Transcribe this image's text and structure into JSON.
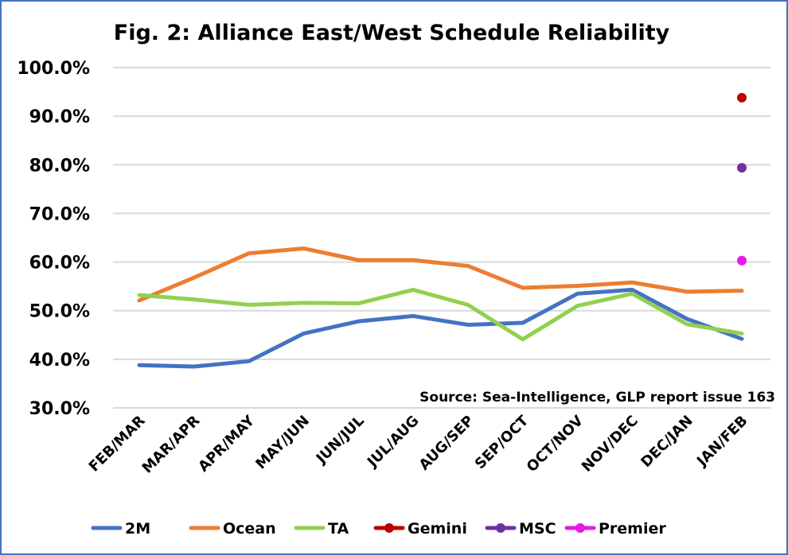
{
  "chart_data": {
    "type": "line",
    "title": "Fig. 2: Alliance East/West Schedule Reliability",
    "annotation": "Source: Sea-Intelligence, GLP report issue 163",
    "xlabel": "",
    "ylabel": "",
    "ylim": [
      30,
      100
    ],
    "yticks": [
      "30.0%",
      "40.0%",
      "50.0%",
      "60.0%",
      "70.0%",
      "80.0%",
      "90.0%",
      "100.0%"
    ],
    "grid": true,
    "legend_position": "bottom",
    "categories": [
      "FEB/MAR",
      "MAR/APR",
      "APR/MAY",
      "MAY/JUN",
      "JUN/JUL",
      "JUL/AUG",
      "AUG/SEP",
      "SEP/OCT",
      "OCT/NOV",
      "NOV/DEC",
      "DEC/JAN",
      "JAN/FEB"
    ],
    "series": [
      {
        "name": "2M",
        "color": "#4472C4",
        "kind": "line",
        "values": [
          38.8,
          38.5,
          39.6,
          45.3,
          47.8,
          48.9,
          47.1,
          47.5,
          53.5,
          54.3,
          48.3,
          44.2
        ]
      },
      {
        "name": "Ocean",
        "color": "#ED7D31",
        "kind": "line",
        "values": [
          52.1,
          56.8,
          61.8,
          62.8,
          60.4,
          60.4,
          59.2,
          54.7,
          55.1,
          55.8,
          53.9,
          54.1
        ]
      },
      {
        "name": "TA",
        "color": "#92D050",
        "kind": "line",
        "values": [
          53.2,
          52.3,
          51.2,
          51.6,
          51.5,
          54.3,
          51.2,
          44.1,
          51.0,
          53.5,
          47.2,
          45.3
        ]
      },
      {
        "name": "Gemini",
        "color": "#C00000",
        "kind": "point",
        "values": [
          null,
          null,
          null,
          null,
          null,
          null,
          null,
          null,
          null,
          null,
          null,
          93.8
        ]
      },
      {
        "name": "MSC",
        "color": "#7030A0",
        "kind": "point",
        "values": [
          null,
          null,
          null,
          null,
          null,
          null,
          null,
          null,
          null,
          null,
          null,
          79.4
        ]
      },
      {
        "name": "Premier",
        "color": "#E619E6",
        "kind": "point",
        "values": [
          null,
          null,
          null,
          null,
          null,
          null,
          null,
          null,
          null,
          null,
          null,
          60.3
        ]
      }
    ]
  }
}
